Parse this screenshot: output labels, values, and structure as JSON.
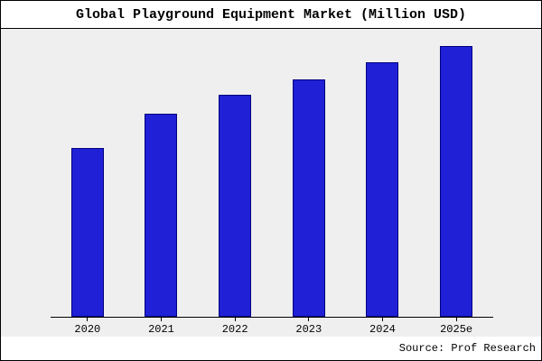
{
  "title": "Global Playground Equipment Market (Million USD)",
  "footer": {
    "source": "Source: Prof Research"
  },
  "chart_data": {
    "type": "bar",
    "title": "Global Playground Equipment Market (Million USD)",
    "categories": [
      "2020",
      "2021",
      "2022",
      "2023",
      "2024",
      "2025e"
    ],
    "values": [
      623,
      750,
      820,
      877,
      940,
      1000
    ],
    "xlabel": "",
    "ylabel": "",
    "ylim": [
      0,
      1000
    ],
    "y_axis_visible": false,
    "grid": false,
    "legend": false,
    "bar_color": "#2020d6",
    "bar_border_color": "#000080",
    "plot_background": "#efefef",
    "source": "Source: Prof Research"
  }
}
